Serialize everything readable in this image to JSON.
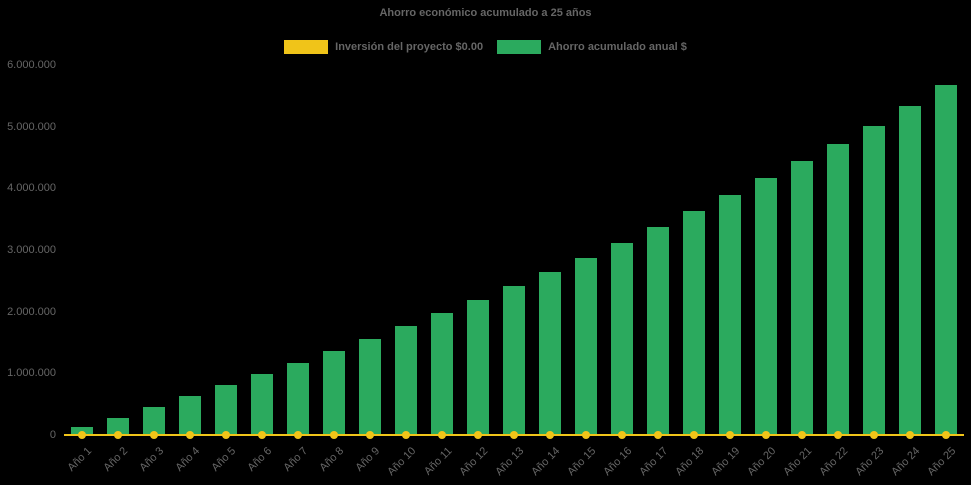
{
  "chart": {
    "title": "Ahorro económico acumulado a 25 años",
    "background_color": "#000000",
    "text_color": "#666666"
  },
  "chart_data": {
    "type": "bar",
    "title": "Ahorro económico acumulado a 25 años",
    "categories": [
      "Año 1",
      "Año 2",
      "Año 3",
      "Año 4",
      "Año 5",
      "Año 6",
      "Año 7",
      "Año 8",
      "Año 9",
      "Año 10",
      "Año 11",
      "Año 12",
      "Año 13",
      "Año 14",
      "Año 15",
      "Año 16",
      "Año 17",
      "Año 18",
      "Año 19",
      "Año 20",
      "Año 21",
      "Año 22",
      "Año 23",
      "Año 24",
      "Año 25"
    ],
    "series": [
      {
        "name": "Inversión del proyecto $0.00",
        "type": "line",
        "color": "#F0C419",
        "values": [
          0,
          0,
          0,
          0,
          0,
          0,
          0,
          0,
          0,
          0,
          0,
          0,
          0,
          0,
          0,
          0,
          0,
          0,
          0,
          0,
          0,
          0,
          0,
          0,
          0
        ]
      },
      {
        "name": "Ahorro acumulado anual $",
        "type": "bar",
        "color": "#2BAA5E",
        "values": [
          130000,
          280000,
          460000,
          640000,
          810000,
          990000,
          1170000,
          1360000,
          1560000,
          1770000,
          1980000,
          2190000,
          2410000,
          2640000,
          2870000,
          3110000,
          3370000,
          3630000,
          3890000,
          4160000,
          4440000,
          4720000,
          5010000,
          5330000,
          5670000
        ]
      }
    ],
    "ylim": [
      0,
      6000000
    ],
    "ytick_labels": [
      "0",
      "1.000.000",
      "2.000.000",
      "3.000.000",
      "4.000.000",
      "5.000.000",
      "6.000.000"
    ],
    "grid": false,
    "legend_position": "top",
    "xlabel": "",
    "ylabel": ""
  }
}
